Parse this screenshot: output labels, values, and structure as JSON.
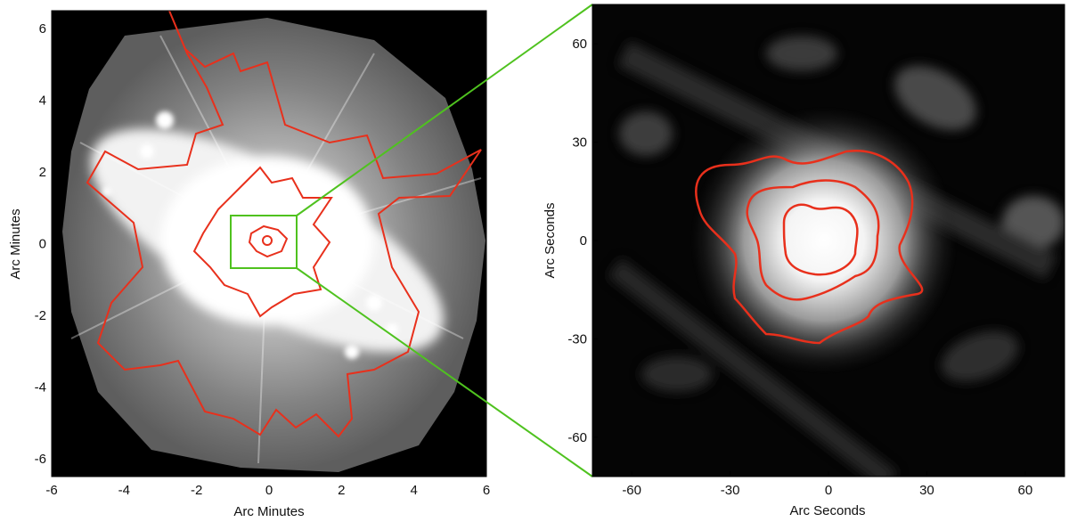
{
  "left_panel": {
    "xlabel": "Arc Minutes",
    "ylabel": "Arc Minutes",
    "xlim": [
      -6,
      6
    ],
    "ylim": [
      -6.5,
      6.5
    ],
    "xticks": [
      "-6",
      "-4",
      "-2",
      "0",
      "2",
      "4",
      "6"
    ],
    "yticks": [
      "6",
      "4",
      "2",
      "0",
      "-2",
      "-4",
      "-6"
    ]
  },
  "right_panel": {
    "xlabel": "Arc Seconds",
    "ylabel": "Arc Seconds",
    "xlim": [
      -72,
      72
    ],
    "ylim": [
      -72,
      72
    ],
    "xticks": [
      "-60",
      "-30",
      "0",
      "30",
      "60"
    ],
    "yticks": [
      "60",
      "30",
      "0",
      "-30",
      "-60"
    ]
  },
  "colors": {
    "contour": "#e8301c",
    "zoom_box": "#4fc21f",
    "background": "#000000"
  }
}
